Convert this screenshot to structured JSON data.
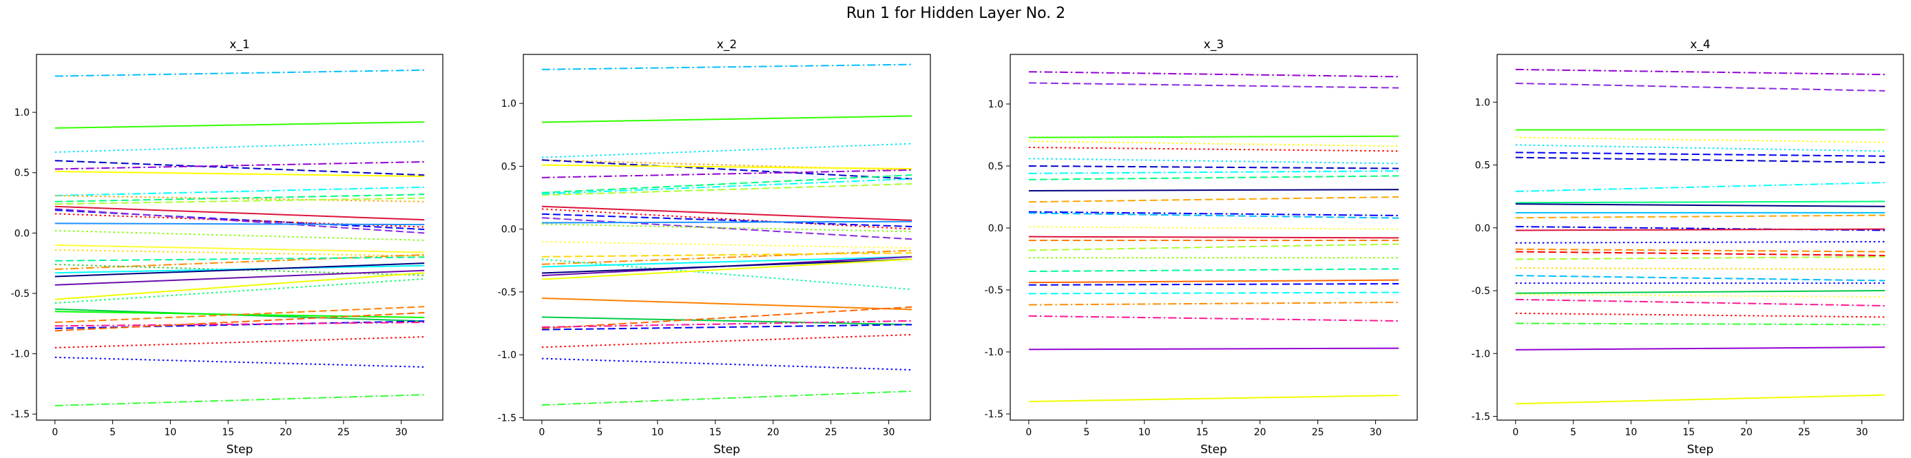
{
  "figure": {
    "title": "Run 1 for Hidden Layer No. 2"
  },
  "chart_data": [
    {
      "type": "line",
      "title": "x_1",
      "xlabel": "Step",
      "ylabel": "",
      "xlim": [
        -1.6,
        33.6
      ],
      "ylim": [
        -1.55,
        1.48
      ],
      "xticks": [
        0,
        5,
        10,
        15,
        20,
        25,
        30
      ],
      "yticks": [
        -1.5,
        -1.0,
        -0.5,
        0.0,
        0.5,
        1.0
      ],
      "ytick_labels": [
        "-1.5",
        "-1.0",
        "-0.5",
        "0.0",
        "0.5",
        "1.0"
      ],
      "series": [
        {
          "color": "#00bfff",
          "style": "dashdot",
          "start": 1.3,
          "end": 1.35
        },
        {
          "color": "#33ff00",
          "style": "solid",
          "start": 0.87,
          "end": 0.92
        },
        {
          "color": "#00e5ff",
          "style": "dotted",
          "start": 0.67,
          "end": 0.76
        },
        {
          "color": "#0000cd",
          "style": "dashed",
          "start": 0.6,
          "end": 0.48
        },
        {
          "color": "#9400d3",
          "style": "dashdot",
          "start": 0.53,
          "end": 0.59
        },
        {
          "color": "#ffff00",
          "style": "solid",
          "start": 0.51,
          "end": 0.47
        },
        {
          "color": "#00ffff",
          "style": "dashdot",
          "start": 0.31,
          "end": 0.38
        },
        {
          "color": "#ffa500",
          "style": "dotted",
          "start": 0.31,
          "end": 0.26
        },
        {
          "color": "#00ff7f",
          "style": "dashed",
          "start": 0.26,
          "end": 0.32
        },
        {
          "color": "#adff2f",
          "style": "dashed",
          "start": 0.24,
          "end": 0.29
        },
        {
          "color": "#dc143c",
          "style": "solid",
          "start": 0.22,
          "end": 0.11
        },
        {
          "color": "#0000ff",
          "style": "dashed",
          "start": 0.19,
          "end": 0.03
        },
        {
          "color": "#ff0000",
          "style": "dotted",
          "start": 0.16,
          "end": 0.05
        },
        {
          "color": "#8a2be2",
          "style": "dashed",
          "start": 0.2,
          "end": 0.0
        },
        {
          "color": "#1e90ff",
          "style": "solid",
          "start": 0.08,
          "end": 0.07
        },
        {
          "color": "#7fff00",
          "style": "dotted",
          "start": 0.02,
          "end": -0.06
        },
        {
          "color": "#ffff33",
          "style": "solid",
          "start": -0.1,
          "end": -0.16
        },
        {
          "color": "#ffd700",
          "style": "dotted",
          "start": -0.14,
          "end": -0.19
        },
        {
          "color": "#ff8c00",
          "style": "dashdot",
          "start": -0.3,
          "end": -0.18
        },
        {
          "color": "#00fa9a",
          "style": "dashed",
          "start": -0.23,
          "end": -0.2
        },
        {
          "color": "#32cd32",
          "style": "dotted",
          "start": -0.26,
          "end": -0.35
        },
        {
          "color": "#00ffff",
          "style": "solid",
          "start": -0.33,
          "end": -0.27
        },
        {
          "color": "#000080",
          "style": "solid",
          "start": -0.36,
          "end": -0.25
        },
        {
          "color": "#6a0dad",
          "style": "solid",
          "start": -0.43,
          "end": -0.31
        },
        {
          "color": "#eeff00",
          "style": "solid",
          "start": -0.55,
          "end": -0.33
        },
        {
          "color": "#00ff66",
          "style": "dotted",
          "start": -0.58,
          "end": -0.38
        },
        {
          "color": "#00cc44",
          "style": "solid",
          "start": -0.63,
          "end": -0.73
        },
        {
          "color": "#00ff00",
          "style": "solid",
          "start": -0.65,
          "end": -0.7
        },
        {
          "color": "#ff8000",
          "style": "dashed",
          "start": -0.74,
          "end": -0.61
        },
        {
          "color": "#0000ff",
          "style": "dashed",
          "start": -0.79,
          "end": -0.73
        },
        {
          "color": "#ff1493",
          "style": "dashdot",
          "start": -0.77,
          "end": -0.74
        },
        {
          "color": "#ff6600",
          "style": "dashed",
          "start": -0.81,
          "end": -0.66
        },
        {
          "color": "#ff0000",
          "style": "dotted",
          "start": -0.95,
          "end": -0.86
        },
        {
          "color": "#0000ff",
          "style": "dotted",
          "start": -1.03,
          "end": -1.11
        },
        {
          "color": "#33ff33",
          "style": "dashdot",
          "start": -1.43,
          "end": -1.34
        }
      ]
    },
    {
      "type": "line",
      "title": "x_2",
      "xlabel": "Step",
      "ylabel": "",
      "xlim": [
        -1.6,
        33.6
      ],
      "ylim": [
        -1.52,
        1.39
      ],
      "xticks": [
        0,
        5,
        10,
        15,
        20,
        25,
        30
      ],
      "yticks": [
        -1.5,
        -1.0,
        -0.5,
        0.0,
        0.5,
        1.0
      ],
      "ytick_labels": [
        "-1.5",
        "-1.0",
        "-0.5",
        "0.0",
        "0.5",
        "1.0"
      ],
      "series": [
        {
          "color": "#00bfff",
          "style": "dashdot",
          "start": 1.27,
          "end": 1.31
        },
        {
          "color": "#33ff00",
          "style": "solid",
          "start": 0.85,
          "end": 0.9
        },
        {
          "color": "#00e5ff",
          "style": "dotted",
          "start": 0.57,
          "end": 0.68
        },
        {
          "color": "#ffa500",
          "style": "dotted",
          "start": 0.55,
          "end": 0.47
        },
        {
          "color": "#0000cd",
          "style": "dashed",
          "start": 0.55,
          "end": 0.4
        },
        {
          "color": "#ffff00",
          "style": "solid",
          "start": 0.51,
          "end": 0.48
        },
        {
          "color": "#9400d3",
          "style": "dashdot",
          "start": 0.41,
          "end": 0.47
        },
        {
          "color": "#00ff7f",
          "style": "dashed",
          "start": 0.29,
          "end": 0.43
        },
        {
          "color": "#adff2f",
          "style": "dashed",
          "start": 0.27,
          "end": 0.36
        },
        {
          "color": "#00ffff",
          "style": "dashdot",
          "start": 0.28,
          "end": 0.4
        },
        {
          "color": "#dc143c",
          "style": "solid",
          "start": 0.18,
          "end": 0.07
        },
        {
          "color": "#ff0000",
          "style": "dotted",
          "start": 0.16,
          "end": 0.0
        },
        {
          "color": "#0000ff",
          "style": "dashed",
          "start": 0.12,
          "end": 0.02
        },
        {
          "color": "#8a2be2",
          "style": "dashed",
          "start": 0.09,
          "end": -0.08
        },
        {
          "color": "#1e90ff",
          "style": "solid",
          "start": 0.05,
          "end": 0.06
        },
        {
          "color": "#7fff00",
          "style": "dotted",
          "start": 0.04,
          "end": -0.02
        },
        {
          "color": "#ffff33",
          "style": "dotted",
          "start": -0.1,
          "end": -0.15
        },
        {
          "color": "#ff8c00",
          "style": "dashdot",
          "start": -0.28,
          "end": -0.17
        },
        {
          "color": "#ffd700",
          "style": "dashed",
          "start": -0.22,
          "end": -0.19
        },
        {
          "color": "#00fa9a",
          "style": "dotted",
          "start": -0.24,
          "end": -0.48
        },
        {
          "color": "#00ffff",
          "style": "solid",
          "start": -0.3,
          "end": -0.22
        },
        {
          "color": "#6a0dad",
          "style": "solid",
          "start": -0.37,
          "end": -0.22
        },
        {
          "color": "#000080",
          "style": "solid",
          "start": -0.35,
          "end": -0.24
        },
        {
          "color": "#eeff00",
          "style": "solid",
          "start": -0.4,
          "end": -0.24
        },
        {
          "color": "#ff8000",
          "style": "solid",
          "start": -0.55,
          "end": -0.64
        },
        {
          "color": "#00cc44",
          "style": "solid",
          "start": -0.7,
          "end": -0.76
        },
        {
          "color": "#ff6600",
          "style": "dashed",
          "start": -0.79,
          "end": -0.62
        },
        {
          "color": "#ff1493",
          "style": "dashdot",
          "start": -0.78,
          "end": -0.73
        },
        {
          "color": "#0000ff",
          "style": "dashed",
          "start": -0.8,
          "end": -0.76
        },
        {
          "color": "#ff0000",
          "style": "dotted",
          "start": -0.94,
          "end": -0.84
        },
        {
          "color": "#0000ff",
          "style": "dotted",
          "start": -1.03,
          "end": -1.12
        },
        {
          "color": "#33ff33",
          "style": "dashdot",
          "start": -1.4,
          "end": -1.29
        }
      ]
    },
    {
      "type": "line",
      "title": "x_3",
      "xlabel": "Step",
      "ylabel": "",
      "xlim": [
        -1.6,
        33.6
      ],
      "ylim": [
        -1.55,
        1.4
      ],
      "xticks": [
        0,
        5,
        10,
        15,
        20,
        25,
        30
      ],
      "yticks": [
        -1.5,
        -1.0,
        -0.5,
        0.0,
        0.5,
        1.0
      ],
      "ytick_labels": [
        "-1.5",
        "-1.0",
        "-0.5",
        "0.0",
        "0.5",
        "1.0"
      ],
      "series": [
        {
          "color": "#9400d3",
          "style": "dashdot",
          "start": 1.26,
          "end": 1.22
        },
        {
          "color": "#8a2be2",
          "style": "dashed",
          "start": 1.17,
          "end": 1.13
        },
        {
          "color": "#33ff00",
          "style": "solid",
          "start": 0.73,
          "end": 0.74
        },
        {
          "color": "#ffff00",
          "style": "dotted",
          "start": 0.7,
          "end": 0.66
        },
        {
          "color": "#ff0000",
          "style": "dotted",
          "start": 0.65,
          "end": 0.62
        },
        {
          "color": "#00e5ff",
          "style": "dotted",
          "start": 0.56,
          "end": 0.52
        },
        {
          "color": "#0000cd",
          "style": "dashed",
          "start": 0.5,
          "end": 0.48
        },
        {
          "color": "#00ffff",
          "style": "dashdot",
          "start": 0.44,
          "end": 0.46
        },
        {
          "color": "#00ff7f",
          "style": "dashed",
          "start": 0.39,
          "end": 0.42
        },
        {
          "color": "#000080",
          "style": "solid",
          "start": 0.3,
          "end": 0.31
        },
        {
          "color": "#ffa500",
          "style": "dashed",
          "start": 0.21,
          "end": 0.25
        },
        {
          "color": "#0000ff",
          "style": "dashdot",
          "start": 0.13,
          "end": 0.1
        },
        {
          "color": "#00bfff",
          "style": "dashed",
          "start": 0.12,
          "end": 0.08
        },
        {
          "color": "#ffff33",
          "style": "dotted",
          "start": 0.01,
          "end": -0.01
        },
        {
          "color": "#dc143c",
          "style": "solid",
          "start": -0.07,
          "end": -0.08
        },
        {
          "color": "#ff8000",
          "style": "dashed",
          "start": -0.1,
          "end": -0.1
        },
        {
          "color": "#adff2f",
          "style": "dashed",
          "start": -0.18,
          "end": -0.13
        },
        {
          "color": "#7fff00",
          "style": "dotted",
          "start": -0.24,
          "end": -0.24
        },
        {
          "color": "#00fa9a",
          "style": "dashed",
          "start": -0.35,
          "end": -0.33
        },
        {
          "color": "#ff6600",
          "style": "solid",
          "start": -0.44,
          "end": -0.42
        },
        {
          "color": "#0000ff",
          "style": "dashed",
          "start": -0.46,
          "end": -0.45
        },
        {
          "color": "#00ffff",
          "style": "dashed",
          "start": -0.53,
          "end": -0.52
        },
        {
          "color": "#ff8c00",
          "style": "dashdot",
          "start": -0.62,
          "end": -0.6
        },
        {
          "color": "#ff1493",
          "style": "dashdot",
          "start": -0.71,
          "end": -0.75
        },
        {
          "color": "#9400d3",
          "style": "solid",
          "start": -0.98,
          "end": -0.97
        },
        {
          "color": "#eeff00",
          "style": "solid",
          "start": -1.4,
          "end": -1.35
        }
      ]
    },
    {
      "type": "line",
      "title": "x_4",
      "xlabel": "Step",
      "ylabel": "",
      "xlim": [
        -1.6,
        33.6
      ],
      "ylim": [
        -1.53,
        1.38
      ],
      "xticks": [
        0,
        5,
        10,
        15,
        20,
        25,
        30
      ],
      "yticks": [
        -1.5,
        -1.0,
        -0.5,
        0.0,
        0.5,
        1.0
      ],
      "ytick_labels": [
        "-1.5",
        "-1.0",
        "-0.5",
        "0.0",
        "0.5",
        "1.0"
      ],
      "series": [
        {
          "color": "#9400d3",
          "style": "dashdot",
          "start": 1.26,
          "end": 1.22
        },
        {
          "color": "#8a2be2",
          "style": "dashed",
          "start": 1.15,
          "end": 1.09
        },
        {
          "color": "#33ff00",
          "style": "solid",
          "start": 0.78,
          "end": 0.78
        },
        {
          "color": "#ffff00",
          "style": "dotted",
          "start": 0.72,
          "end": 0.68
        },
        {
          "color": "#00e5ff",
          "style": "dotted",
          "start": 0.66,
          "end": 0.61
        },
        {
          "color": "#0000ff",
          "style": "dashed",
          "start": 0.6,
          "end": 0.57
        },
        {
          "color": "#0000cd",
          "style": "dashed",
          "start": 0.56,
          "end": 0.52
        },
        {
          "color": "#00ffff",
          "style": "dashdot",
          "start": 0.29,
          "end": 0.36
        },
        {
          "color": "#00ff7f",
          "style": "solid",
          "start": 0.2,
          "end": 0.21
        },
        {
          "color": "#000080",
          "style": "solid",
          "start": 0.19,
          "end": 0.17
        },
        {
          "color": "#00bfff",
          "style": "solid",
          "start": 0.12,
          "end": 0.12
        },
        {
          "color": "#ffa500",
          "style": "dashed",
          "start": 0.08,
          "end": 0.1
        },
        {
          "color": "#0000ff",
          "style": "dashdot",
          "start": 0.01,
          "end": -0.02
        },
        {
          "color": "#dc143c",
          "style": "solid",
          "start": -0.02,
          "end": -0.01
        },
        {
          "color": "#0000ff",
          "style": "dotted",
          "start": -0.12,
          "end": -0.11
        },
        {
          "color": "#ff8c00",
          "style": "dashed",
          "start": -0.17,
          "end": -0.19
        },
        {
          "color": "#ff0000",
          "style": "dashed",
          "start": -0.19,
          "end": -0.22
        },
        {
          "color": "#adff2f",
          "style": "dashed",
          "start": -0.25,
          "end": -0.23
        },
        {
          "color": "#ffd700",
          "style": "dotted",
          "start": -0.32,
          "end": -0.33
        },
        {
          "color": "#00bfff",
          "style": "dashed",
          "start": -0.38,
          "end": -0.42
        },
        {
          "color": "#0000ff",
          "style": "dotted",
          "start": -0.44,
          "end": -0.44
        },
        {
          "color": "#00cc44",
          "style": "solid",
          "start": -0.52,
          "end": -0.5
        },
        {
          "color": "#ffff33",
          "style": "dotted",
          "start": -0.53,
          "end": -0.55
        },
        {
          "color": "#ff1493",
          "style": "dashdot",
          "start": -0.57,
          "end": -0.62
        },
        {
          "color": "#ff0000",
          "style": "dotted",
          "start": -0.68,
          "end": -0.71
        },
        {
          "color": "#33ff33",
          "style": "dashdot",
          "start": -0.76,
          "end": -0.77
        },
        {
          "color": "#9400d3",
          "style": "solid",
          "start": -0.97,
          "end": -0.95
        },
        {
          "color": "#eeff00",
          "style": "solid",
          "start": -1.4,
          "end": -1.33
        }
      ]
    }
  ]
}
